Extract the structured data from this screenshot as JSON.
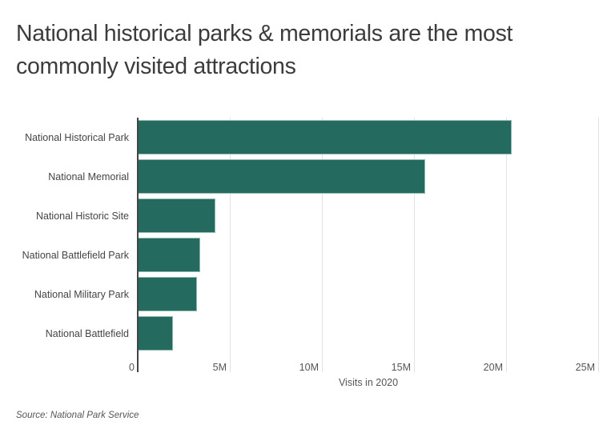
{
  "header": {
    "title": "National historical parks & memorials are the most commonly visited attractions"
  },
  "chart_data": {
    "type": "bar",
    "orientation": "horizontal",
    "title": "National historical parks & memorials are the most commonly visited attractions",
    "categories": [
      "National Historical Park",
      "National Memorial",
      "National Historic Site",
      "National Battlefield Park",
      "National Military Park",
      "National Battlefield"
    ],
    "values": [
      20300000,
      15600000,
      4200000,
      3400000,
      3200000,
      1900000
    ],
    "xlabel": "Visits in 2020",
    "ylabel": "",
    "xlim": [
      0,
      25000000
    ],
    "x_ticks": [
      "0",
      "5M",
      "10M",
      "15M",
      "20M",
      "25M"
    ],
    "grid": true,
    "bar_color": "#256a5e",
    "source": "Source:  National Park Service"
  },
  "axis": {
    "ticks": [
      "0",
      "5M",
      "10M",
      "15M",
      "20M",
      "25M"
    ],
    "label": "Visits in 2020"
  },
  "footer": {
    "source": "Source:  National Park Service"
  }
}
